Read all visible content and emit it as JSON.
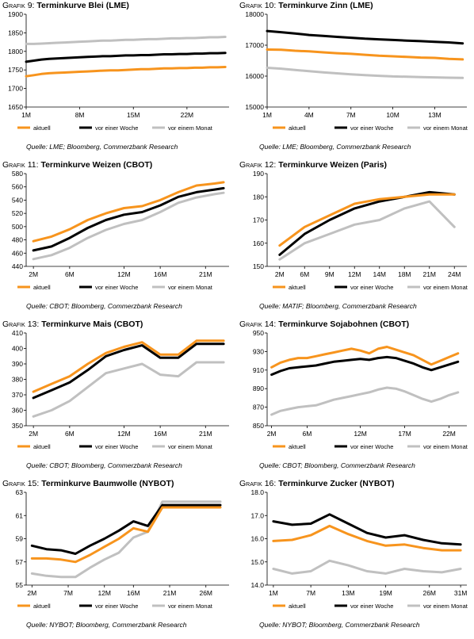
{
  "panels": [
    {
      "id": "p9",
      "title_prefix": "Grafik 9:",
      "title": "Terminkurve Blei (LME)",
      "source": "Quelle: LME; Bloomberg, Commerzbank Research",
      "chart_data": {
        "type": "line",
        "x": [
          1,
          2,
          3,
          4,
          5,
          6,
          7,
          8,
          9,
          10,
          11,
          12,
          13,
          14,
          15,
          16,
          17,
          18,
          19,
          20,
          21,
          22,
          23,
          24,
          25,
          26,
          27
        ],
        "xlim": [
          1,
          27.5
        ],
        "x_tick_values": [
          1,
          8,
          15,
          22
        ],
        "x_tick_labels": [
          "1M",
          "8M",
          "15M",
          "22M"
        ],
        "ylim": [
          1650,
          1900
        ],
        "y_ticks": [
          1650,
          1700,
          1750,
          1800,
          1850,
          1900
        ],
        "series": [
          {
            "name": "aktuell",
            "color": "#f7941d",
            "values": [
              1733,
              1736,
              1739,
              1741,
              1742,
              1743,
              1744,
              1745,
              1746,
              1747,
              1748,
              1749,
              1749,
              1750,
              1751,
              1752,
              1752,
              1753,
              1754,
              1754,
              1755,
              1755,
              1756,
              1756,
              1757,
              1757,
              1758
            ]
          },
          {
            "name": "vor einer Woche",
            "color": "#000000",
            "values": [
              1772,
              1775,
              1778,
              1780,
              1781,
              1782,
              1783,
              1784,
              1785,
              1786,
              1787,
              1787,
              1788,
              1789,
              1789,
              1790,
              1790,
              1791,
              1792,
              1792,
              1793,
              1793,
              1794,
              1794,
              1795,
              1795,
              1796
            ]
          },
          {
            "name": "vor einem Monat",
            "color": "#c0c0c0",
            "values": [
              1820,
              1820,
              1821,
              1822,
              1823,
              1824,
              1825,
              1826,
              1827,
              1828,
              1829,
              1829,
              1830,
              1831,
              1831,
              1832,
              1833,
              1833,
              1834,
              1835,
              1835,
              1836,
              1836,
              1837,
              1838,
              1838,
              1839
            ]
          }
        ]
      }
    },
    {
      "id": "p10",
      "title_prefix": "Grafik 10:",
      "title": "Terminkurve Zinn (LME)",
      "source": "Quelle: LME; Bloomberg, Commerzbank Research",
      "chart_data": {
        "type": "line",
        "x": [
          1,
          2,
          3,
          4,
          5,
          6,
          7,
          8,
          9,
          10,
          11,
          12,
          13,
          14,
          15
        ],
        "xlim": [
          1,
          15.3
        ],
        "x_tick_values": [
          1,
          4,
          7,
          10,
          13
        ],
        "x_tick_labels": [
          "1M",
          "4M",
          "7M",
          "10M",
          "13M"
        ],
        "ylim": [
          15000,
          18000
        ],
        "y_ticks": [
          15000,
          16000,
          17000,
          18000
        ],
        "series": [
          {
            "name": "aktuell",
            "color": "#f7941d",
            "values": [
              16860,
              16850,
              16820,
              16800,
              16770,
              16740,
              16720,
              16690,
              16660,
              16640,
              16620,
              16600,
              16590,
              16560,
              16540
            ]
          },
          {
            "name": "vor einer Woche",
            "color": "#000000",
            "values": [
              17460,
              17420,
              17380,
              17330,
              17300,
              17270,
              17240,
              17210,
              17190,
              17170,
              17150,
              17130,
              17110,
              17090,
              17060
            ]
          },
          {
            "name": "vor einem Monat",
            "color": "#c0c0c0",
            "values": [
              16270,
              16240,
              16200,
              16160,
              16120,
              16090,
              16060,
              16030,
              16010,
              15990,
              15980,
              15970,
              15960,
              15950,
              15940
            ]
          }
        ]
      }
    },
    {
      "id": "p11",
      "title_prefix": "Grafik 11:",
      "title": "Terminkurve Weizen (CBOT)",
      "source": "Quelle: CBOT; Bloomberg, Commerzbank Research",
      "chart_data": {
        "type": "line",
        "x": [
          2,
          4,
          6,
          8,
          10,
          12,
          14,
          16,
          18,
          20,
          22,
          23
        ],
        "xlim": [
          1.2,
          23.6
        ],
        "x_tick_values": [
          2,
          6,
          12,
          16,
          21
        ],
        "x_tick_labels": [
          "2M",
          "6M",
          "12M",
          "16M",
          "21M"
        ],
        "ylim": [
          440,
          580
        ],
        "y_ticks": [
          440,
          460,
          480,
          500,
          520,
          540,
          560,
          580
        ],
        "series": [
          {
            "name": "aktuell",
            "color": "#f7941d",
            "values": [
              478,
              485,
              496,
              510,
              520,
              528,
              531,
              540,
              552,
              562,
              565,
              567
            ]
          },
          {
            "name": "vor einer Woche",
            "color": "#000000",
            "values": [
              464,
              470,
              483,
              498,
              510,
              518,
              522,
              532,
              545,
              552,
              556,
              558
            ]
          },
          {
            "name": "vor einem Monat",
            "color": "#c0c0c0",
            "values": [
              451,
              457,
              468,
              483,
              495,
              504,
              510,
              522,
              536,
              544,
              549,
              551
            ]
          }
        ]
      }
    },
    {
      "id": "p12",
      "title_prefix": "Grafik 12:",
      "title": "Terminkurve Weizen (Paris)",
      "source": "Quelle: MATIF; Bloomberg, Commerzbank Research",
      "chart_data": {
        "type": "line",
        "categories": [
          "2M",
          "6M",
          "9M",
          "12M",
          "14M",
          "18M",
          "21M",
          "24M"
        ],
        "ylim": [
          150,
          190
        ],
        "y_ticks": [
          150,
          160,
          170,
          180,
          190
        ],
        "series": [
          {
            "name": "aktuell",
            "color": "#f7941d",
            "values": [
              159,
              167,
              172,
              177,
              179,
              180,
              181,
              181
            ]
          },
          {
            "name": "vor einer Woche",
            "color": "#000000",
            "values": [
              155,
              164,
              170,
              175,
              178,
              180,
              182,
              181
            ]
          },
          {
            "name": "vor einem Monat",
            "color": "#c0c0c0",
            "values": [
              153,
              160,
              164,
              168,
              170,
              175,
              178,
              167
            ]
          }
        ]
      }
    },
    {
      "id": "p13",
      "title_prefix": "Grafik 13:",
      "title": "Terminkurve Mais (CBOT)",
      "source": "Quelle: CBOT; Bloomberg, Commerzbank Research",
      "chart_data": {
        "type": "line",
        "x": [
          2,
          4,
          6,
          8,
          10,
          12,
          14,
          16,
          18,
          20,
          22,
          23
        ],
        "xlim": [
          1.2,
          23.6
        ],
        "x_tick_values": [
          2,
          6,
          12,
          16,
          21
        ],
        "x_tick_labels": [
          "2M",
          "6M",
          "12M",
          "16M",
          "21M"
        ],
        "ylim": [
          350,
          410
        ],
        "y_ticks": [
          350,
          360,
          370,
          380,
          390,
          400,
          410
        ],
        "series": [
          {
            "name": "aktuell",
            "color": "#f7941d",
            "values": [
              372,
              377,
              382,
              390,
              397,
              401,
              404,
              396,
              396,
              405,
              405,
              405
            ]
          },
          {
            "name": "vor einer Woche",
            "color": "#000000",
            "values": [
              368,
              373,
              378,
              386,
              395,
              399,
              402,
              394,
              394,
              403,
              403,
              403
            ]
          },
          {
            "name": "vor einem Monat",
            "color": "#c0c0c0",
            "values": [
              356,
              360,
              366,
              375,
              384,
              387,
              390,
              383,
              382,
              391,
              391,
              391
            ]
          }
        ]
      }
    },
    {
      "id": "p14",
      "title_prefix": "Grafik 14:",
      "title": "Terminkurve Sojabohnen (CBOT)",
      "source": "Quelle: CBOT; Bloomberg, Commerzbank Research",
      "chart_data": {
        "type": "line",
        "x": [
          2,
          3,
          4,
          5,
          6,
          7,
          8,
          9,
          10,
          11,
          12,
          13,
          14,
          15,
          16,
          17,
          18,
          19,
          20,
          21,
          22,
          23
        ],
        "xlim": [
          1.5,
          24
        ],
        "x_tick_values": [
          2,
          6,
          12,
          17,
          22
        ],
        "x_tick_labels": [
          "2M",
          "6M",
          "12M",
          "17M",
          "22M"
        ],
        "ylim": [
          850,
          950
        ],
        "y_ticks": [
          850,
          870,
          890,
          910,
          930,
          950
        ],
        "series": [
          {
            "name": "aktuell",
            "color": "#f7941d",
            "values": [
              913,
              918,
              921,
              923,
              923,
              925,
              927,
              929,
              931,
              933,
              931,
              928,
              933,
              935,
              932,
              929,
              926,
              921,
              916,
              920,
              924,
              928
            ]
          },
          {
            "name": "vor einer Woche",
            "color": "#000000",
            "values": [
              905,
              909,
              912,
              913,
              914,
              915,
              917,
              919,
              920,
              921,
              922,
              921,
              923,
              924,
              923,
              920,
              917,
              913,
              910,
              913,
              916,
              919
            ]
          },
          {
            "name": "vor einem Monat",
            "color": "#c0c0c0",
            "values": [
              862,
              866,
              868,
              870,
              871,
              872,
              875,
              878,
              880,
              882,
              884,
              886,
              889,
              891,
              890,
              887,
              883,
              879,
              876,
              879,
              883,
              886
            ]
          }
        ]
      }
    },
    {
      "id": "p15",
      "title_prefix": "Grafik 15:",
      "title": "Terminkurve Baumwolle (NYBOT)",
      "source": "Quelle: NYBOT; Bloomberg, Commerzbank Research",
      "chart_data": {
        "type": "line",
        "x": [
          2,
          4,
          6,
          8,
          10,
          12,
          14,
          16,
          18,
          20,
          22,
          24,
          26,
          28
        ],
        "xlim": [
          1.2,
          29.2
        ],
        "x_tick_values": [
          2,
          7,
          12,
          16,
          21,
          26
        ],
        "x_tick_labels": [
          "2M",
          "7M",
          "12M",
          "16M",
          "21M",
          "26M"
        ],
        "ylim": [
          55,
          63
        ],
        "y_ticks": [
          55,
          57,
          59,
          61,
          63
        ],
        "series": [
          {
            "name": "aktuell",
            "color": "#f7941d",
            "values": [
              57.3,
              57.3,
              57.2,
              57.0,
              57.6,
              58.3,
              59.0,
              59.9,
              59.6,
              61.7,
              61.7,
              61.7,
              61.7,
              61.7
            ]
          },
          {
            "name": "vor einer Woche",
            "color": "#000000",
            "values": [
              58.4,
              58.1,
              58.0,
              57.7,
              58.4,
              59.0,
              59.7,
              60.5,
              60.1,
              61.9,
              61.9,
              61.9,
              61.9,
              61.9
            ]
          },
          {
            "name": "vor einem Monat",
            "color": "#c0c0c0",
            "values": [
              56.0,
              55.8,
              55.7,
              55.7,
              56.5,
              57.2,
              57.8,
              59.1,
              59.6,
              62.2,
              62.2,
              62.2,
              62.2,
              62.2
            ]
          }
        ]
      }
    },
    {
      "id": "p16",
      "title_prefix": "Grafik 16:",
      "title": "Terminkurve Zucker (NYBOT)",
      "source": "Quelle: NYBOT; Bloomberg, Commerzbank Research",
      "chart_data": {
        "type": "line",
        "x": [
          1,
          4,
          7,
          10,
          13,
          16,
          19,
          22,
          25,
          28,
          31
        ],
        "xlim": [
          0,
          32
        ],
        "x_tick_values": [
          1,
          7,
          13,
          19,
          26,
          31
        ],
        "x_tick_labels": [
          "1M",
          "7M",
          "13M",
          "19M",
          "26M",
          "31M"
        ],
        "ylim": [
          14.0,
          18.0
        ],
        "y_ticks": [
          14.0,
          15.0,
          16.0,
          17.0,
          18.0
        ],
        "series": [
          {
            "name": "aktuell",
            "color": "#f7941d",
            "values": [
              15.9,
              15.95,
              16.15,
              16.55,
              16.2,
              15.9,
              15.7,
              15.75,
              15.6,
              15.5,
              15.5
            ]
          },
          {
            "name": "vor einer Woche",
            "color": "#000000",
            "values": [
              16.75,
              16.6,
              16.65,
              17.05,
              16.65,
              16.25,
              16.05,
              16.15,
              15.95,
              15.8,
              15.75
            ]
          },
          {
            "name": "vor einem Monat",
            "color": "#c0c0c0",
            "values": [
              14.7,
              14.5,
              14.6,
              15.05,
              14.85,
              14.6,
              14.5,
              14.7,
              14.6,
              14.55,
              14.7
            ]
          }
        ]
      }
    }
  ]
}
